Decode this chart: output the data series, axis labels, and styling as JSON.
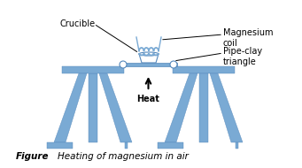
{
  "bg_color": "#ffffff",
  "blue": "#7aaad4",
  "blue_edge": "#5588bb",
  "text_color": "#000000",
  "label_crucible": "Crucible",
  "label_mg_coil": "Magnesium\ncoil",
  "label_pipe_clay": "Pipe-clay\ntriangle",
  "label_heat": "Heat",
  "title_bold": "Figure",
  "title_italic": "Heating of magnesium in air",
  "fig_width": 3.41,
  "fig_height": 1.9,
  "dpi": 100
}
